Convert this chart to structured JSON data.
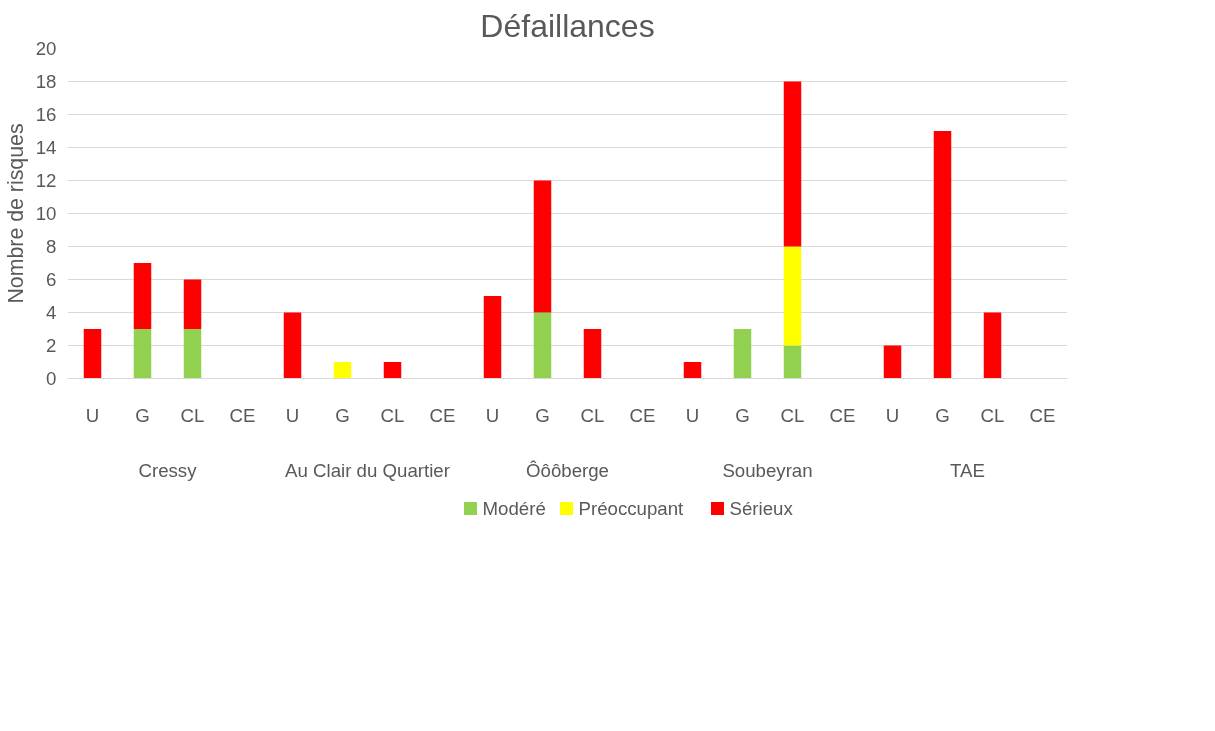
{
  "chart_data": {
    "type": "bar",
    "title": "Défaillances",
    "ylabel": "Nombre de risques",
    "stacked": true,
    "categories": [
      "U",
      "G",
      "CL",
      "CE",
      "U",
      "G",
      "CL",
      "CE",
      "U",
      "G",
      "CL",
      "CE",
      "U",
      "G",
      "CL",
      "CE",
      "U",
      "G",
      "CL",
      "CE"
    ],
    "annotations": [
      "Cressy",
      "Au Clair du Quartier",
      "Ôôôberge",
      "Soubeyran",
      "TAE"
    ],
    "series": [
      {
        "name": "Modéré",
        "color": "#92d050",
        "values": [
          0,
          3,
          3,
          0,
          0,
          0,
          0,
          0,
          0,
          4,
          0,
          0,
          0,
          3,
          2,
          0,
          0,
          0,
          0,
          0
        ]
      },
      {
        "name": "Préoccupant",
        "color": "#ffff00",
        "values": [
          0,
          0,
          0,
          0,
          0,
          1,
          0,
          0,
          0,
          0,
          0,
          0,
          0,
          0,
          6,
          0,
          0,
          0,
          0,
          0
        ]
      },
      {
        "name": "Sérieux",
        "color": "#ff0000",
        "values": [
          3,
          4,
          3,
          0,
          4,
          0,
          1,
          0,
          5,
          8,
          3,
          0,
          1,
          0,
          10,
          0,
          2,
          15,
          4,
          0
        ]
      }
    ],
    "ylim": [
      0,
      20
    ],
    "yticks": [
      0,
      2,
      4,
      6,
      8,
      10,
      12,
      14,
      16,
      18,
      20
    ],
    "grid": "y",
    "legend": "bottom"
  }
}
